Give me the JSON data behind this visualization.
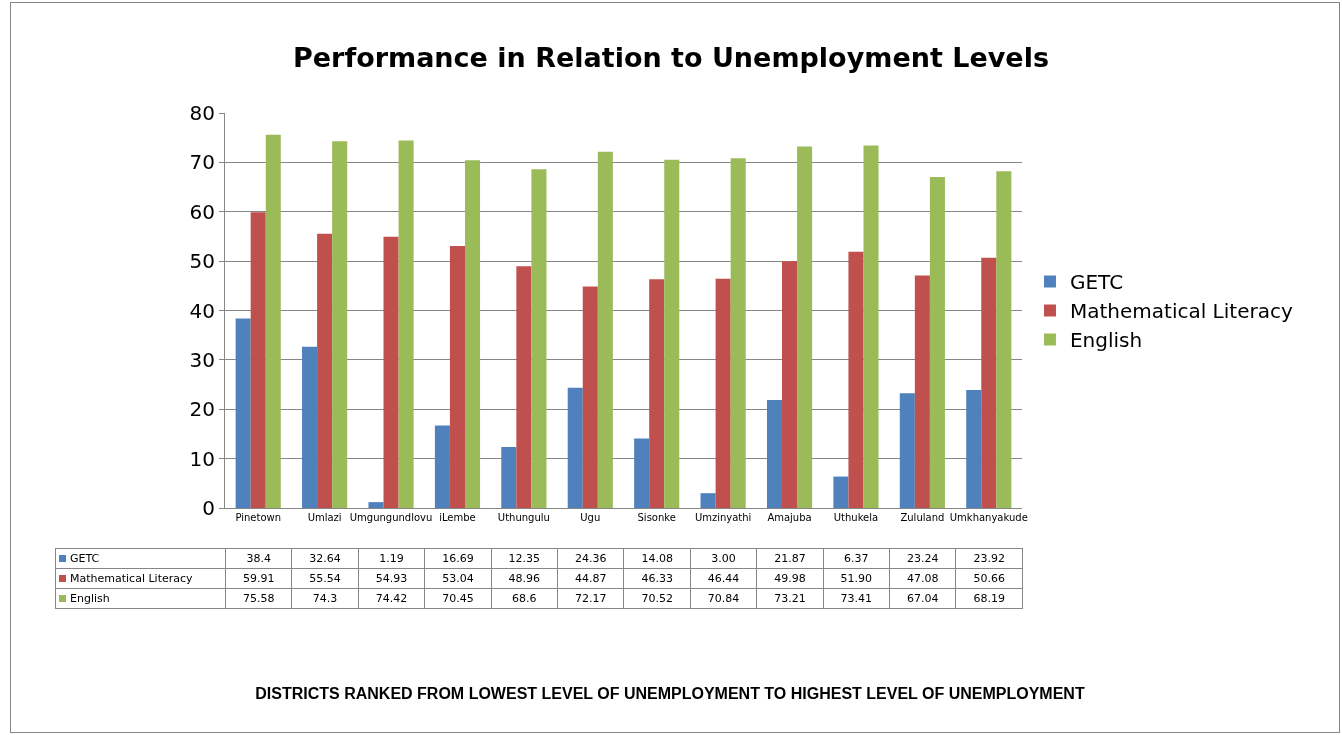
{
  "chart_data": {
    "type": "bar",
    "title": "Performance in Relation to Unemployment Levels",
    "annotations": [
      "DISTRICTS RANKED FROM LOWEST LEVEL OF UNEMPLOYMENT TO HIGHEST LEVEL OF UNEMPLOYMENT"
    ],
    "categories": [
      "Pinetown",
      "Umlazi",
      "Umgungundlovu",
      "iLembe",
      "Uthungulu",
      "Ugu",
      "Sisonke",
      "Umzinyathi",
      "Amajuba",
      "Uthukela",
      "Zululand",
      "Umkhanyakude"
    ],
    "series": [
      {
        "name": "GETC",
        "color": "#4f81bd",
        "values": [
          38.4,
          32.64,
          1.19,
          16.69,
          12.35,
          24.36,
          14.08,
          3.0,
          21.87,
          6.37,
          23.24,
          23.92
        ],
        "value_labels": [
          "38.4",
          "32.64",
          "1.19",
          "16.69",
          "12.35",
          "24.36",
          "14.08",
          "3.00",
          "21.87",
          "6.37",
          "23.24",
          "23.92"
        ]
      },
      {
        "name": "Mathematical Literacy",
        "color": "#c0504d",
        "values": [
          59.91,
          55.54,
          54.93,
          53.04,
          48.96,
          44.87,
          46.33,
          46.44,
          49.98,
          51.9,
          47.08,
          50.66
        ],
        "value_labels": [
          "59.91",
          "55.54",
          "54.93",
          "53.04",
          "48.96",
          "44.87",
          "46.33",
          "46.44",
          "49.98",
          "51.90",
          "47.08",
          "50.66"
        ]
      },
      {
        "name": "English",
        "color": "#9bbb59",
        "values": [
          75.58,
          74.3,
          74.42,
          70.45,
          68.6,
          72.17,
          70.52,
          70.84,
          73.21,
          73.41,
          67.04,
          68.19
        ],
        "value_labels": [
          "75.58",
          "74.3",
          "74.42",
          "70.45",
          "68.6",
          "72.17",
          "70.52",
          "70.84",
          "73.21",
          "73.41",
          "67.04",
          "68.19"
        ]
      }
    ],
    "ylim": [
      0,
      80
    ],
    "yticks": [
      0,
      10,
      20,
      30,
      40,
      50,
      60,
      70,
      80
    ],
    "grid": "y",
    "legend": "right"
  }
}
